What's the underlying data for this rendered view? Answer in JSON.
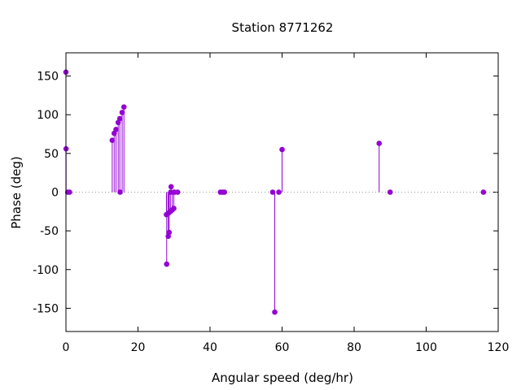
{
  "chart_data": {
    "type": "scatter",
    "style": "impulses-with-points",
    "title": "Station 8771262",
    "xlabel": "Angular speed (deg/hr)",
    "ylabel": "Phase (deg)",
    "xlim": [
      0,
      120
    ],
    "ylim": [
      -180,
      180
    ],
    "xticks": [
      0,
      20,
      40,
      60,
      80,
      100,
      120
    ],
    "yticks": [
      150,
      100,
      50,
      0,
      -50,
      -100,
      -150
    ],
    "grid": false,
    "zero_line": "dotted",
    "color": "#9400d3",
    "points": [
      {
        "x": 0.0,
        "y": 155
      },
      {
        "x": 0.04,
        "y": 56
      },
      {
        "x": 0.5,
        "y": 0
      },
      {
        "x": 1.0,
        "y": 0
      },
      {
        "x": 12.85,
        "y": 67
      },
      {
        "x": 13.4,
        "y": 76
      },
      {
        "x": 13.9,
        "y": 81
      },
      {
        "x": 14.5,
        "y": 90
      },
      {
        "x": 14.96,
        "y": 95
      },
      {
        "x": 15.04,
        "y": 0
      },
      {
        "x": 15.6,
        "y": 103
      },
      {
        "x": 16.1,
        "y": 110
      },
      {
        "x": 27.9,
        "y": -29
      },
      {
        "x": 27.97,
        "y": -93
      },
      {
        "x": 28.4,
        "y": -57
      },
      {
        "x": 28.5,
        "y": -27
      },
      {
        "x": 28.65,
        "y": -52
      },
      {
        "x": 29.0,
        "y": -25
      },
      {
        "x": 29.1,
        "y": 0
      },
      {
        "x": 29.2,
        "y": 7
      },
      {
        "x": 29.5,
        "y": -23
      },
      {
        "x": 29.95,
        "y": -21
      },
      {
        "x": 30.0,
        "y": 0
      },
      {
        "x": 30.1,
        "y": 0
      },
      {
        "x": 31.0,
        "y": 0
      },
      {
        "x": 42.9,
        "y": 0
      },
      {
        "x": 43.5,
        "y": 0
      },
      {
        "x": 44.0,
        "y": 0
      },
      {
        "x": 57.4,
        "y": 0
      },
      {
        "x": 57.97,
        "y": -155
      },
      {
        "x": 59.1,
        "y": 0
      },
      {
        "x": 60.0,
        "y": 55
      },
      {
        "x": 86.95,
        "y": 63
      },
      {
        "x": 90.0,
        "y": 0
      },
      {
        "x": 115.9,
        "y": 0
      }
    ]
  }
}
